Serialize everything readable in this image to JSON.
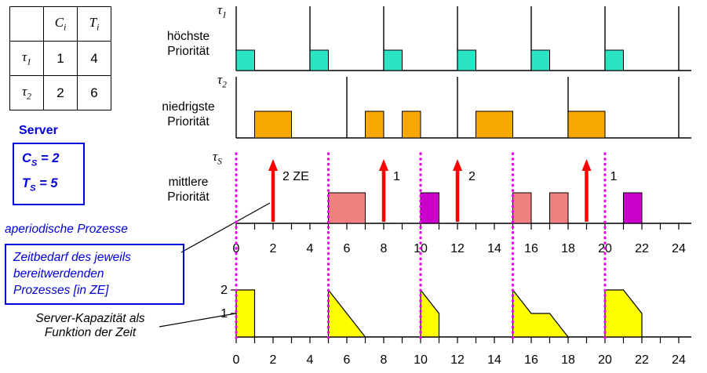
{
  "task_table": {
    "col_c": {
      "main": "C",
      "sub": "i"
    },
    "col_t": {
      "main": "T",
      "sub": "i"
    },
    "rows": [
      {
        "task_main": "τ",
        "task_sub": "1",
        "c": "1",
        "t": "4"
      },
      {
        "task_main": "τ",
        "task_sub": "2",
        "c": "2",
        "t": "6"
      }
    ]
  },
  "server_panel": {
    "title": "Server",
    "cs": {
      "main": "C",
      "sub": "S",
      "rest": " = 2"
    },
    "ts": {
      "main": "T",
      "sub": "S",
      "rest": " = 5"
    },
    "accent_color": "#0000dd"
  },
  "annotations": {
    "aperiodic": "aperiodische Prozesse",
    "zeitbedarf_line1": "Zeitbedarf des jeweils",
    "zeitbedarf_line2": "bereitwerdenden",
    "zeitbedarf_line3": "Prozesses [in ZE]",
    "kapazitaet_line1": "Server-Kapazität als",
    "kapazitaet_line2": "Funktion der Zeit"
  },
  "row_labels": {
    "tau1": {
      "main": "τ",
      "sub": "1",
      "prio1": "höchste",
      "prio2": "Priorität"
    },
    "tau2": {
      "main": "τ",
      "sub": "2",
      "prio1": "niedrigste",
      "prio2": "Priorität"
    },
    "tauS": {
      "main": "τ",
      "sub": "S",
      "prio1": "mittlere",
      "prio2": "Priorität"
    }
  },
  "chart_data": {
    "type": "gantt-schedule",
    "time_axis": {
      "min": 0,
      "max": 24,
      "minor_tick": 1,
      "major_tick": 2,
      "labels": [
        "0",
        "2",
        "4",
        "6",
        "8",
        "10",
        "12",
        "14",
        "16",
        "18",
        "20",
        "22",
        "24"
      ]
    },
    "tasks": {
      "tau1": {
        "color": "#2be4c4",
        "period_lines": [
          0,
          4,
          8,
          12,
          16,
          20,
          24
        ],
        "executions": [
          [
            0,
            1
          ],
          [
            4,
            5
          ],
          [
            8,
            9
          ],
          [
            12,
            13
          ],
          [
            16,
            17
          ],
          [
            20,
            21
          ]
        ]
      },
      "tau2": {
        "color": "#f7a800",
        "period_lines": [
          0,
          6,
          12,
          18,
          24
        ],
        "executions": [
          [
            1,
            3
          ],
          [
            7,
            8
          ],
          [
            9,
            10
          ],
          [
            13,
            15
          ],
          [
            18,
            20
          ]
        ]
      },
      "server": {
        "replenishment_lines": [
          0,
          5,
          10,
          15,
          20
        ],
        "replenishment_color": "#ee00ee",
        "executions": [
          {
            "from": 5,
            "to": 7,
            "color": "#f08080"
          },
          {
            "from": 10,
            "to": 11,
            "color": "#cc00cc"
          },
          {
            "from": 15,
            "to": 16,
            "color": "#f08080"
          },
          {
            "from": 17,
            "to": 18,
            "color": "#f08080"
          },
          {
            "from": 21,
            "to": 22,
            "color": "#cc00cc"
          }
        ]
      }
    },
    "aperiodic_arrivals": [
      {
        "t": 2,
        "label": "2 ZE"
      },
      {
        "t": 8,
        "label": "1"
      },
      {
        "t": 12,
        "label": "2"
      },
      {
        "t": 19,
        "label": "1"
      }
    ],
    "arrival_color": "#ff0000",
    "capacity_function": {
      "color": "#ffff00",
      "axis_ticks": [
        {
          "value": 2,
          "label": "2"
        },
        {
          "value": 1,
          "label": "1"
        }
      ],
      "segments": [
        [
          [
            0,
            2
          ],
          [
            1,
            2
          ],
          [
            1,
            0
          ]
        ],
        [
          [
            5,
            2
          ],
          [
            7,
            0
          ]
        ],
        [
          [
            10,
            2
          ],
          [
            11,
            1
          ],
          [
            11,
            0
          ]
        ],
        [
          [
            15,
            2
          ],
          [
            16,
            1
          ],
          [
            17,
            1
          ],
          [
            18,
            0
          ]
        ],
        [
          [
            20,
            2
          ],
          [
            21,
            2
          ],
          [
            22,
            1
          ],
          [
            22,
            0
          ]
        ]
      ]
    }
  }
}
